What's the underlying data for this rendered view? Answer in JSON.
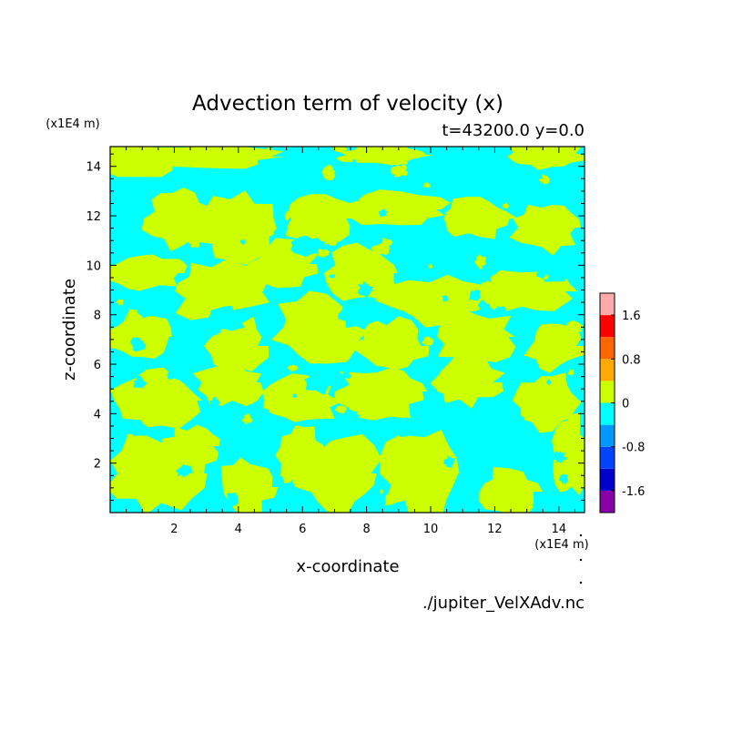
{
  "chart_data": {
    "type": "heatmap",
    "title": "Advection term of velocity (x)",
    "subtitle": "t=43200.0 y=0.0",
    "xlabel": "x-coordinate",
    "ylabel": "z-coordinate",
    "x_unit": "(x1E4 m)",
    "y_unit": "(x1E4 m)",
    "xlim": [
      0,
      14.8
    ],
    "ylim": [
      0,
      14.8
    ],
    "x_ticks": [
      2,
      4,
      6,
      8,
      10,
      12,
      14
    ],
    "y_ticks": [
      2,
      4,
      6,
      8,
      10,
      12,
      14
    ],
    "x_tick_labels": [
      "2",
      "4",
      "6",
      "8",
      "10",
      "12",
      "14"
    ],
    "y_tick_labels": [
      "2",
      "4",
      "6",
      "8",
      "10",
      "12",
      "14"
    ],
    "field_colors": {
      "negative_small": "#00ffff",
      "positive_small": "#ccff00"
    },
    "colorbar": {
      "levels": [
        -2.0,
        -1.6,
        -1.2,
        -0.8,
        -0.4,
        0,
        0.4,
        0.8,
        1.2,
        1.6,
        2.0
      ],
      "colors": [
        "#8800aa",
        "#0000cc",
        "#0044ff",
        "#0099ff",
        "#00ffff",
        "#ccff00",
        "#ffaa00",
        "#ff6600",
        "#ff0000",
        "#ffaaaa"
      ],
      "labels": [
        "1.6",
        "0.8",
        "0",
        "-0.8",
        "-1.6"
      ],
      "label_values": [
        1.6,
        0.8,
        0,
        -0.8,
        -1.6
      ]
    },
    "source_file": "./jupiter_VelXAdv.nc"
  }
}
